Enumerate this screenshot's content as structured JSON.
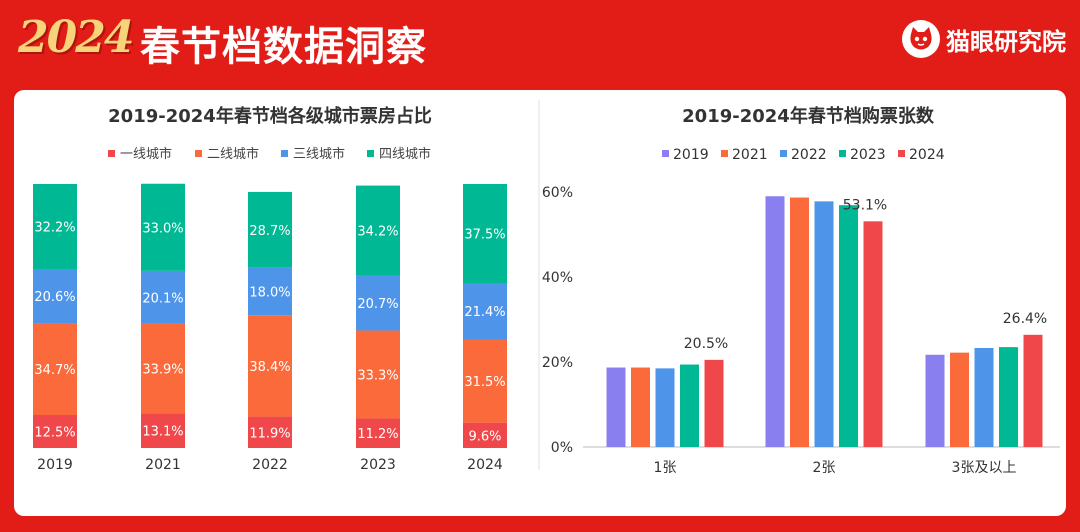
{
  "header": {
    "year_logo": "2024",
    "title": "春节档数据洞察",
    "brand": "猫眼研究院"
  },
  "colors": {
    "frame": "#e21d18",
    "red": "#f0474a",
    "orange": "#fa6a3b",
    "blue": "#4e95ea",
    "teal": "#00b894",
    "purple": "#8a7fee"
  },
  "chart_data": [
    {
      "type": "bar",
      "stacked": true,
      "title": "2019-2024年春节档各级城市票房占比",
      "categories": [
        "2019",
        "2021",
        "2022",
        "2023",
        "2024"
      ],
      "series": [
        {
          "name": "一线城市",
          "color": "#f0474a",
          "values": [
            12.5,
            13.1,
            11.9,
            11.2,
            9.6
          ],
          "labels": [
            "12.5%",
            "13.1%",
            "11.9%",
            "11.2%",
            "9.6%"
          ]
        },
        {
          "name": "二线城市",
          "color": "#fa6a3b",
          "values": [
            34.7,
            33.9,
            38.4,
            33.3,
            31.5
          ],
          "labels": [
            "34.7%",
            "33.9%",
            "38.4%",
            "33.3%",
            "31.5%"
          ]
        },
        {
          "name": "三线城市",
          "color": "#4e95ea",
          "values": [
            20.6,
            20.1,
            18.0,
            20.7,
            21.4
          ],
          "labels": [
            "20.6%",
            "20.1%",
            "18.0%",
            "20.7%",
            "21.4%"
          ]
        },
        {
          "name": "四线城市",
          "color": "#00b894",
          "values": [
            32.2,
            33.0,
            28.7,
            34.2,
            37.5
          ],
          "labels": [
            "32.2%",
            "33.0%",
            "28.7%",
            "34.2%",
            "37.5%"
          ]
        }
      ],
      "ylim": [
        0,
        100
      ],
      "legend": "top-center",
      "grid": false
    },
    {
      "type": "bar",
      "stacked": false,
      "title": "2019-2024年春节档购票张数",
      "categories": [
        "1张",
        "2张",
        "3张及以上"
      ],
      "series": [
        {
          "name": "2019",
          "color": "#8a7fee",
          "values": [
            18.7,
            59.0,
            21.7
          ]
        },
        {
          "name": "2021",
          "color": "#fa6a3b",
          "values": [
            18.7,
            58.7,
            22.2
          ]
        },
        {
          "name": "2022",
          "color": "#4e95ea",
          "values": [
            18.5,
            57.8,
            23.3
          ]
        },
        {
          "name": "2023",
          "color": "#00b894",
          "values": [
            19.4,
            56.9,
            23.5
          ]
        },
        {
          "name": "2024",
          "color": "#f0474a",
          "values": [
            20.5,
            53.1,
            26.4
          ]
        }
      ],
      "annotations": [
        {
          "series": "2024",
          "category": "1张",
          "text": "20.5%"
        },
        {
          "series": "2024",
          "category": "2张",
          "text": "53.1%"
        },
        {
          "series": "2024",
          "category": "3张及以上",
          "text": "26.4%"
        }
      ],
      "yticks": [
        {
          "value": 0,
          "label": "0%"
        },
        {
          "value": 20,
          "label": "20%"
        },
        {
          "value": 40,
          "label": "40%"
        },
        {
          "value": 60,
          "label": "60%"
        }
      ],
      "ylim": [
        0,
        60
      ],
      "legend": "top-center",
      "grid": false
    }
  ]
}
